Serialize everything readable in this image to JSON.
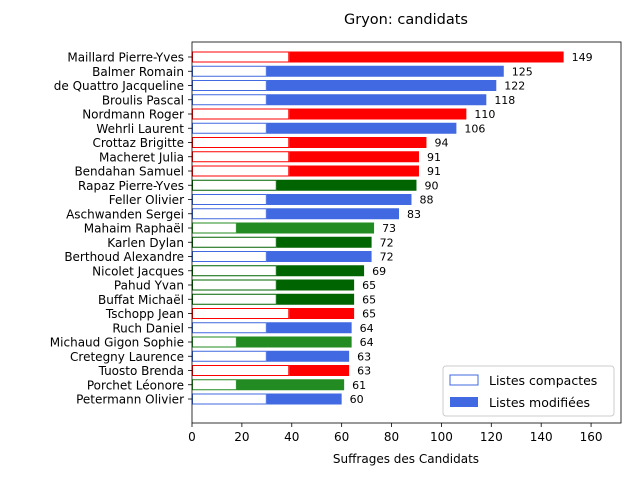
{
  "chart_data": {
    "type": "bar",
    "orientation": "horizontal",
    "title": "Gryon: candidats",
    "xlabel": "Suffrages des Candidats",
    "ylabel": "",
    "xlim": [
      0,
      172
    ],
    "xticks": [
      0,
      20,
      40,
      60,
      80,
      100,
      120,
      140,
      160
    ],
    "legend": {
      "placement": "bottom-right",
      "entries": [
        {
          "label": "Listes compactes",
          "style": "outline",
          "color": "#4169e1"
        },
        {
          "label": "Listes modifiées",
          "style": "filled",
          "color": "#4169e1"
        }
      ]
    },
    "candidates": [
      {
        "name": "Maillard Pierre-Yves",
        "total": 149,
        "compact": 39,
        "color": "#ff0000"
      },
      {
        "name": "Balmer Romain",
        "total": 125,
        "compact": 30,
        "color": "#4169e1"
      },
      {
        "name": "de Quattro Jacqueline",
        "total": 122,
        "compact": 30,
        "color": "#4169e1"
      },
      {
        "name": "Broulis Pascal",
        "total": 118,
        "compact": 30,
        "color": "#4169e1"
      },
      {
        "name": "Nordmann Roger",
        "total": 110,
        "compact": 39,
        "color": "#ff0000"
      },
      {
        "name": "Wehrli Laurent",
        "total": 106,
        "compact": 30,
        "color": "#4169e1"
      },
      {
        "name": "Crottaz Brigitte",
        "total": 94,
        "compact": 39,
        "color": "#ff0000"
      },
      {
        "name": "Macheret Julia",
        "total": 91,
        "compact": 39,
        "color": "#ff0000"
      },
      {
        "name": "Bendahan Samuel",
        "total": 91,
        "compact": 39,
        "color": "#ff0000"
      },
      {
        "name": "Rapaz Pierre-Yves",
        "total": 90,
        "compact": 34,
        "color": "#006400"
      },
      {
        "name": "Feller Olivier",
        "total": 88,
        "compact": 30,
        "color": "#4169e1"
      },
      {
        "name": "Aschwanden Sergei",
        "total": 83,
        "compact": 30,
        "color": "#4169e1"
      },
      {
        "name": "Mahaim Raphaël",
        "total": 73,
        "compact": 18,
        "color": "#228b22"
      },
      {
        "name": "Karlen Dylan",
        "total": 72,
        "compact": 34,
        "color": "#006400"
      },
      {
        "name": "Berthoud Alexandre",
        "total": 72,
        "compact": 30,
        "color": "#4169e1"
      },
      {
        "name": "Nicolet Jacques",
        "total": 69,
        "compact": 34,
        "color": "#006400"
      },
      {
        "name": "Pahud Yvan",
        "total": 65,
        "compact": 34,
        "color": "#006400"
      },
      {
        "name": "Buffat Michaël",
        "total": 65,
        "compact": 34,
        "color": "#006400"
      },
      {
        "name": "Tschopp Jean",
        "total": 65,
        "compact": 39,
        "color": "#ff0000"
      },
      {
        "name": "Ruch Daniel",
        "total": 64,
        "compact": 30,
        "color": "#4169e1"
      },
      {
        "name": "Michaud Gigon Sophie",
        "total": 64,
        "compact": 18,
        "color": "#228b22"
      },
      {
        "name": "Cretegny Laurence",
        "total": 63,
        "compact": 30,
        "color": "#4169e1"
      },
      {
        "name": "Tuosto Brenda",
        "total": 63,
        "compact": 39,
        "color": "#ff0000"
      },
      {
        "name": "Porchet Léonore",
        "total": 61,
        "compact": 18,
        "color": "#228b22"
      },
      {
        "name": "Petermann Olivier",
        "total": 60,
        "compact": 30,
        "color": "#4169e1"
      }
    ]
  }
}
